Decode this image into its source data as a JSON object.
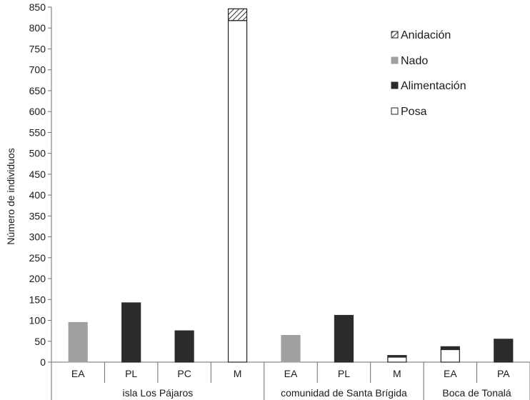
{
  "chart_data": {
    "type": "bar",
    "stacked": true,
    "ylabel": "Número de individuos",
    "ylim": [
      0,
      850
    ],
    "yticks": [
      0,
      50,
      100,
      150,
      200,
      250,
      300,
      350,
      400,
      450,
      500,
      550,
      600,
      650,
      700,
      750,
      800,
      850
    ],
    "grid": false,
    "legend_position": "top-right",
    "groups": [
      {
        "label": "isla Los Pájaros",
        "categories": [
          "EA",
          "PL",
          "PC",
          "M"
        ]
      },
      {
        "label": "comunidad de Santa Brígida",
        "categories": [
          "EA",
          "PL",
          "M"
        ]
      },
      {
        "label": "Boca de Tonalá",
        "categories": [
          "EA",
          "PA"
        ]
      }
    ],
    "categories": [
      "EA",
      "PL",
      "PC",
      "M",
      "EA",
      "PL",
      "M",
      "EA",
      "PA"
    ],
    "series": [
      {
        "name": "Posa",
        "color": "#ffffff",
        "values": [
          0,
          0,
          0,
          818,
          0,
          0,
          12,
          30,
          0
        ]
      },
      {
        "name": "Alimentación",
        "color": "#2b2b2b",
        "values": [
          0,
          142,
          75,
          0,
          0,
          112,
          4,
          7,
          55
        ]
      },
      {
        "name": "Nado",
        "color": "#a0a0a0",
        "values": [
          95,
          0,
          0,
          0,
          64,
          0,
          0,
          0,
          0
        ]
      },
      {
        "name": "Anidación",
        "color": "hatched",
        "values": [
          0,
          0,
          0,
          28,
          0,
          0,
          0,
          0,
          0
        ]
      }
    ],
    "legend_order": [
      "Anidación",
      "Nado",
      "Alimentación",
      "Posa"
    ]
  }
}
